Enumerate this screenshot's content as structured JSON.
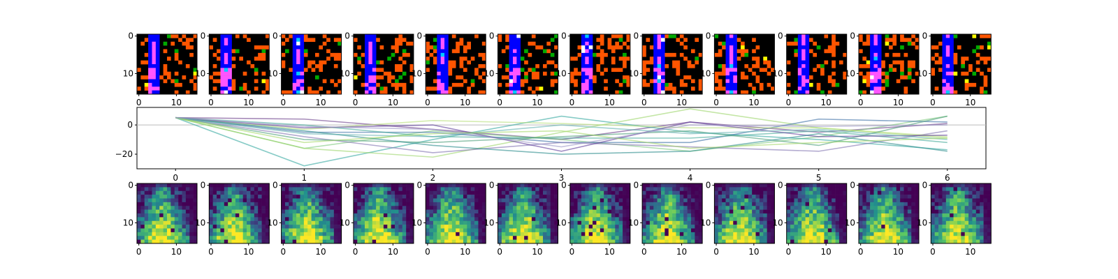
{
  "figure": {
    "top_row_ticks": {
      "y": [
        "0",
        "10"
      ],
      "x": [
        "0",
        "10"
      ]
    },
    "bottom_row_ticks": {
      "y": [
        "0",
        "10"
      ],
      "x": [
        "0",
        "10"
      ]
    },
    "line_panel_ticks": {
      "x": [
        "0",
        "1",
        "2",
        "3",
        "4",
        "5",
        "6"
      ],
      "y": [
        "0",
        "−20"
      ]
    }
  },
  "colors": {
    "background": "#000000",
    "wall": "#0000ff",
    "agent_trail": "#ff55ff",
    "lava": "#ff5500",
    "goal": "#00aa00",
    "cyan": "#00c8ff",
    "white": "#ffffff",
    "yellow": "#ffff00",
    "zero_line": "#bbbbbb",
    "viridis": [
      "#440154",
      "#3b528b",
      "#21908d",
      "#5dc962",
      "#fde725"
    ]
  },
  "chart_data": [
    {
      "type": "heatmap",
      "panel": "top-row-observations",
      "count": 12,
      "grid_size": 16,
      "xlim": [
        0,
        15
      ],
      "ylim": [
        15,
        0
      ],
      "colormap": "categorical",
      "description_legend": "black=empty, blue=wall column, magenta=agent trail, orange=lava, green=goal"
    },
    {
      "type": "line",
      "panel": "middle-trajectories",
      "x": [
        0,
        1,
        2,
        3,
        4,
        5,
        6
      ],
      "xlim": [
        -0.3,
        6.3
      ],
      "ylim": [
        -30,
        12
      ],
      "yticks": [
        0,
        -20
      ],
      "reference_line": 0,
      "series": [
        {
          "color": "#6a3d8a",
          "values": [
            5,
            4,
            -3,
            -10,
            2,
            -5,
            1
          ]
        },
        {
          "color": "#7fc97f",
          "values": [
            5,
            -16,
            -4,
            -10,
            -18,
            -8,
            6
          ]
        },
        {
          "color": "#35a8a0",
          "values": [
            5,
            -28,
            -10,
            6,
            -5,
            -10,
            -17
          ]
        },
        {
          "color": "#9dd66b",
          "values": [
            5,
            -16,
            -22,
            -5,
            11,
            -2,
            -9
          ]
        },
        {
          "color": "#3a6ea5",
          "values": [
            5,
            -5,
            -5,
            -12,
            -12,
            4,
            2
          ]
        },
        {
          "color": "#44aa99",
          "values": [
            5,
            0,
            -8,
            -9,
            -9,
            -4,
            -12
          ]
        },
        {
          "color": "#8073b0",
          "values": [
            5,
            -8,
            -19,
            -12,
            -15,
            -18,
            -4
          ]
        },
        {
          "color": "#b8e07a",
          "values": [
            5,
            -3,
            3,
            1,
            -2,
            -2,
            -8
          ]
        },
        {
          "color": "#4d9f7a",
          "values": [
            5,
            -10,
            -12,
            -8,
            -4,
            -14,
            6
          ]
        },
        {
          "color": "#5e3c99",
          "values": [
            5,
            -2,
            0,
            -18,
            2,
            -8,
            -7
          ]
        },
        {
          "color": "#2c8c8c",
          "values": [
            5,
            -4,
            -14,
            -20,
            -18,
            -6,
            -18
          ]
        },
        {
          "color": "#66b2b2",
          "values": [
            5,
            -6,
            -8,
            0,
            -6,
            -3,
            -10
          ]
        },
        {
          "color": "#a6d96a",
          "values": [
            5,
            -12,
            -6,
            -4,
            -16,
            -12,
            -9
          ]
        },
        {
          "color": "#9e9ac8",
          "values": [
            5,
            -1,
            -3,
            -15,
            0,
            -1,
            0
          ]
        }
      ]
    },
    {
      "type": "heatmap",
      "panel": "bottom-row-visitation",
      "count": 12,
      "grid_size": 16,
      "xlim": [
        0,
        15
      ],
      "ylim": [
        15,
        0
      ],
      "colormap": "viridis"
    }
  ]
}
